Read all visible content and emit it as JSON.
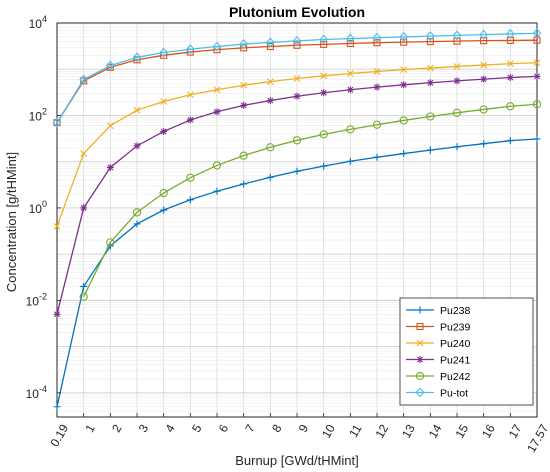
{
  "chart_data": {
    "type": "line",
    "title": "Plutonium Evolution",
    "xlabel": "Burnup [GWd/tHMint]",
    "ylabel": "Concentration [g/tHMint]",
    "x": [
      0.19,
      1,
      2,
      3,
      4,
      5,
      6,
      7,
      8,
      9,
      10,
      11,
      12,
      13,
      14,
      15,
      16,
      17,
      17.57
    ],
    "x_tick_labels": [
      "0.19",
      "1",
      "2",
      "3",
      "4",
      "5",
      "6",
      "7",
      "8",
      "9",
      "10",
      "11",
      "12",
      "13",
      "14",
      "15",
      "16",
      "17",
      "17.57"
    ],
    "y_scale": "log",
    "ylim": [
      3e-05,
      10000
    ],
    "y_ticks": [
      {
        "mantissa": "10",
        "exp": "-4",
        "value": 0.0001
      },
      {
        "mantissa": "10",
        "exp": "-2",
        "value": 0.01
      },
      {
        "mantissa": "10",
        "exp": "0",
        "value": 1
      },
      {
        "mantissa": "10",
        "exp": "2",
        "value": 100
      },
      {
        "mantissa": "10",
        "exp": "4",
        "value": 10000
      }
    ],
    "grid": true,
    "legend_position": "bottom-right",
    "series": [
      {
        "name": "Pu238",
        "color": "#0072BD",
        "marker": "plus",
        "values": [
          5e-05,
          0.02,
          0.15,
          0.45,
          0.9,
          1.5,
          2.3,
          3.3,
          4.6,
          6.2,
          8.0,
          10.2,
          12.5,
          15.0,
          17.8,
          21.0,
          24.5,
          28.5,
          31
        ]
      },
      {
        "name": "Pu239",
        "color": "#D95319",
        "marker": "square",
        "values": [
          70,
          560,
          1100,
          1600,
          2000,
          2350,
          2650,
          2900,
          3100,
          3300,
          3450,
          3600,
          3750,
          3850,
          3950,
          4050,
          4150,
          4200,
          4250
        ]
      },
      {
        "name": "Pu240",
        "color": "#EDB120",
        "marker": "x",
        "values": [
          0.4,
          15,
          60,
          130,
          200,
          280,
          360,
          450,
          540,
          630,
          720,
          810,
          890,
          980,
          1060,
          1150,
          1230,
          1320,
          1380
        ]
      },
      {
        "name": "Pu241",
        "color": "#7E2F8E",
        "marker": "star",
        "values": [
          0.005,
          1.0,
          7.5,
          22,
          45,
          80,
          120,
          165,
          210,
          260,
          310,
          360,
          410,
          460,
          510,
          560,
          610,
          660,
          700
        ]
      },
      {
        "name": "Pu242",
        "color": "#77AC30",
        "marker": "circle",
        "values": [
          null,
          0.012,
          0.18,
          0.8,
          2.1,
          4.5,
          8.3,
          13.5,
          20.5,
          29,
          39,
          50,
          63,
          78,
          95,
          114,
          135,
          158,
          175
        ]
      },
      {
        "name": "Pu-tot",
        "color": "#4DBEEE",
        "marker": "diamond",
        "values": [
          70,
          600,
          1200,
          1800,
          2300,
          2700,
          3100,
          3500,
          3800,
          4100,
          4400,
          4600,
          4800,
          5000,
          5200,
          5400,
          5600,
          5800,
          6000
        ]
      }
    ]
  }
}
